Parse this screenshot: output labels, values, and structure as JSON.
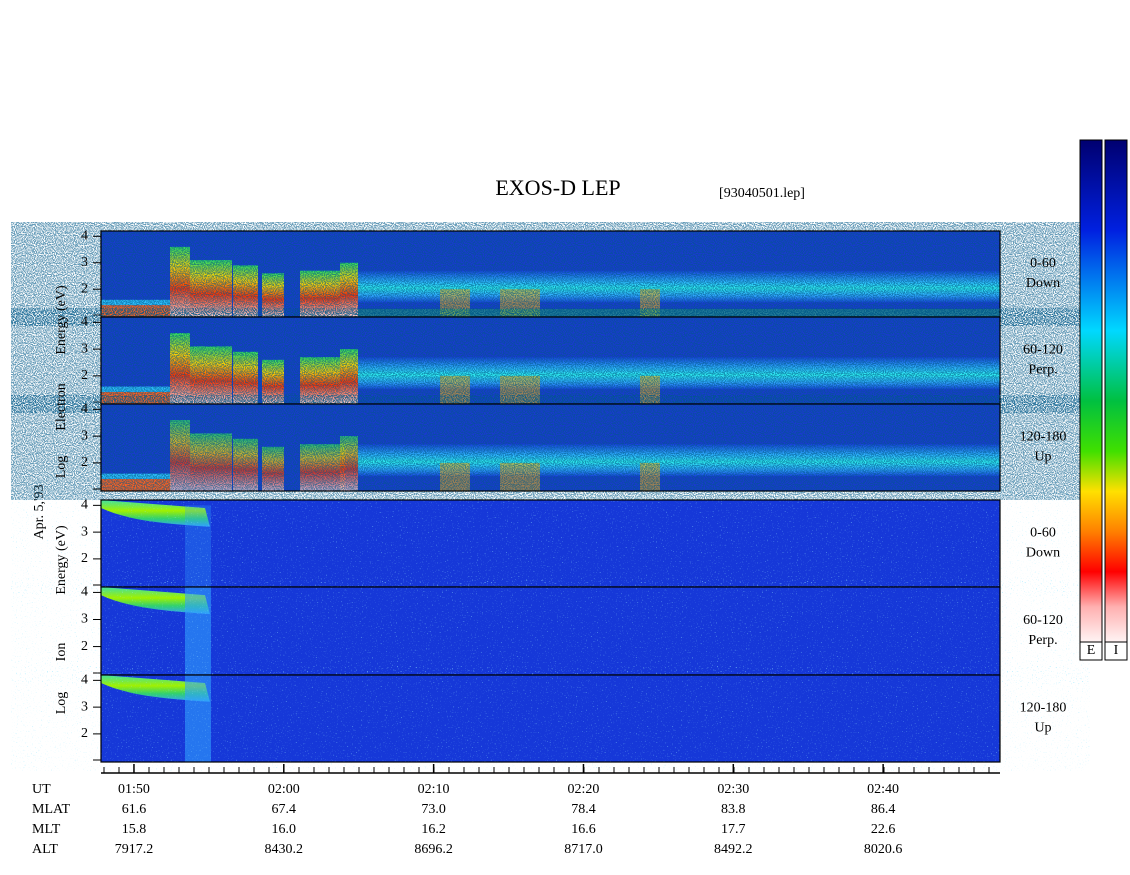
{
  "title": "EXOS-D LEP",
  "file": "[93040501.lep]",
  "date": "Apr. 5,'93",
  "time_axis": {
    "xlim": [
      107.8,
      167.8
    ],
    "xticks": [
      {
        "value": 110,
        "label": "01:50"
      },
      {
        "value": 120,
        "label": "02:00"
      },
      {
        "value": 130,
        "label": "02:10"
      },
      {
        "value": 140,
        "label": "02:20"
      },
      {
        "value": 150,
        "label": "02:30"
      },
      {
        "value": 160,
        "label": "02:40"
      }
    ]
  },
  "ylim": [
    0.95,
    4.2
  ],
  "yticks": [
    2,
    3,
    4
  ],
  "groups": [
    {
      "kind": "electron",
      "labels": [
        "Log",
        "Electron",
        "Energy (eV)"
      ],
      "panels": [
        {
          "lines": [
            "0-60",
            "Down"
          ]
        },
        {
          "lines": [
            "60-120",
            "Perp."
          ]
        },
        {
          "lines": [
            "120-180",
            "Up"
          ]
        }
      ]
    },
    {
      "kind": "ion",
      "labels": [
        "Log",
        "Ion",
        "Energy (eV)"
      ],
      "panels": [
        {
          "lines": [
            "0-60",
            "Down"
          ]
        },
        {
          "lines": [
            "60-120",
            "Perp."
          ]
        },
        {
          "lines": [
            "120-180",
            "Up"
          ]
        }
      ]
    }
  ],
  "orbit": {
    "rows": [
      {
        "label": "UT",
        "values": []
      },
      {
        "label": "MLAT",
        "values": [
          "61.6",
          "67.4",
          "73.0",
          "78.4",
          "83.8",
          "86.4"
        ]
      },
      {
        "label": "MLT",
        "values": [
          "15.8",
          "16.0",
          "16.2",
          "16.6",
          "17.7",
          "22.6"
        ]
      },
      {
        "label": "ALT",
        "values": [
          "7917.2",
          "8430.2",
          "8696.2",
          "8717.0",
          "8492.2",
          "8020.6"
        ]
      }
    ]
  },
  "colorbars": [
    "E",
    "I"
  ]
}
